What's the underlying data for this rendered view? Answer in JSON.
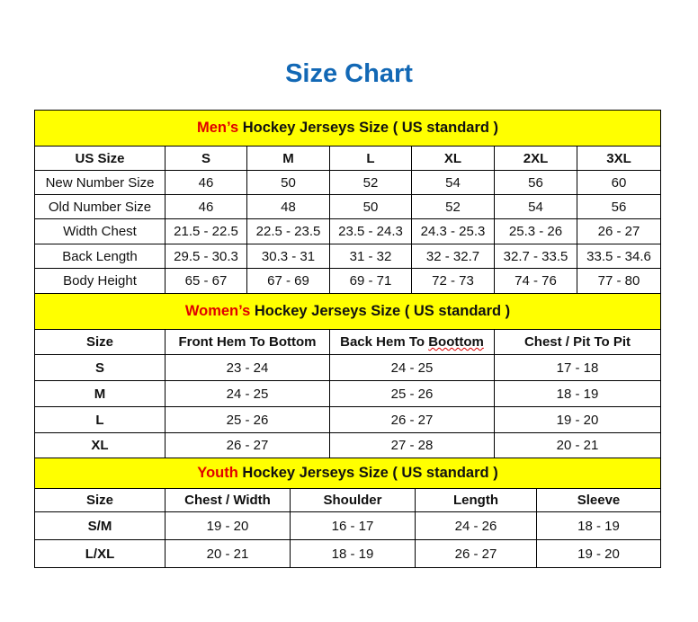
{
  "title": "Size Chart",
  "men": {
    "title_prefix": "Men’s",
    "title_rest": " Hockey Jerseys Size ( US standard )",
    "headers": [
      "US Size",
      "S",
      "M",
      "L",
      "XL",
      "2XL",
      "3XL"
    ],
    "rows": [
      [
        "New Number Size",
        "46",
        "50",
        "52",
        "54",
        "56",
        "60"
      ],
      [
        "Old Number Size",
        "46",
        "48",
        "50",
        "52",
        "54",
        "56"
      ],
      [
        "Width Chest",
        "21.5 - 22.5",
        "22.5 - 23.5",
        "23.5 - 24.3",
        "24.3 - 25.3",
        "25.3 - 26",
        "26 - 27"
      ],
      [
        "Back Length",
        "29.5 - 30.3",
        "30.3 - 31",
        "31 - 32",
        "32 - 32.7",
        "32.7 - 33.5",
        "33.5 - 34.6"
      ],
      [
        "Body Height",
        "65 - 67",
        "67 - 69",
        "69 - 71",
        "72 - 73",
        "74 - 76",
        "77 - 80"
      ]
    ]
  },
  "women": {
    "title_prefix": "Women’s",
    "title_rest": " Hockey Jerseys Size ( US standard )",
    "headers": [
      "Size",
      "Front Hem To Bottom",
      "Back Hem To Boottom",
      "Chest / Pit To Pit"
    ],
    "rows": [
      [
        "S",
        "23 - 24",
        "24 - 25",
        "17 - 18"
      ],
      [
        "M",
        "24 - 25",
        "25 - 26",
        "18 - 19"
      ],
      [
        "L",
        "25 - 26",
        "26 - 27",
        "19 - 20"
      ],
      [
        "XL",
        "26 - 27",
        "27 - 28",
        "20 - 21"
      ]
    ]
  },
  "youth": {
    "title_prefix": "Youth",
    "title_rest": " Hockey Jerseys Size ( US standard )",
    "headers": [
      "Size",
      "Chest / Width",
      "Shoulder",
      "Length",
      "Sleeve"
    ],
    "rows": [
      [
        "S/M",
        "19 - 20",
        "16 - 17",
        "24 - 26",
        "18 - 19"
      ],
      [
        "L/XL",
        "20 - 21",
        "18 - 19",
        "26 - 27",
        "19 - 20"
      ]
    ]
  },
  "colors": {
    "title": "#1268b5",
    "header_bg": "#ffff00",
    "accent_red": "#e00000"
  }
}
